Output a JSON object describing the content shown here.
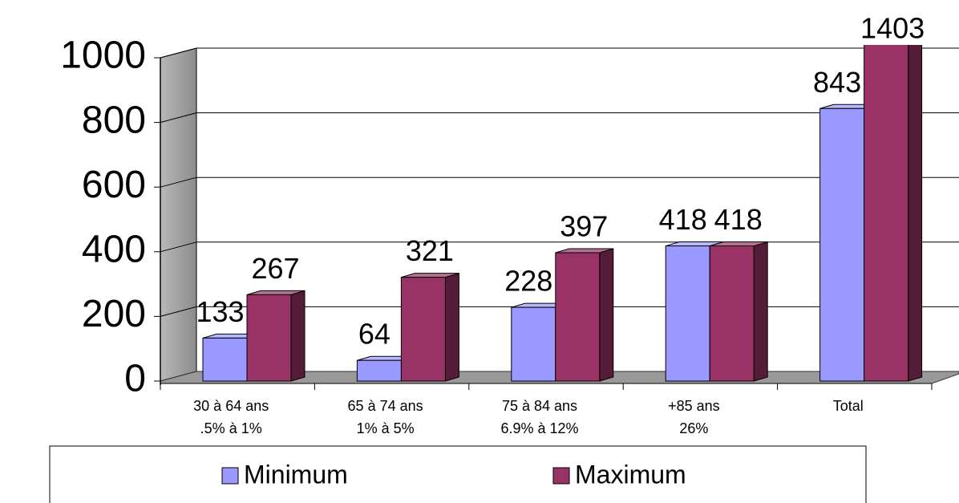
{
  "chart_data": {
    "type": "bar3d",
    "categories": [
      [
        "30 à 64 ans",
        ".5% à 1%"
      ],
      [
        "65 à 74 ans",
        "1% à 5%"
      ],
      [
        "75 à 84 ans",
        "6.9% à 12%"
      ],
      [
        "+85 ans",
        "26%"
      ],
      [
        "Total"
      ]
    ],
    "series": [
      {
        "name": "Minimum",
        "color": "#9999ff",
        "values": [
          133,
          64,
          228,
          418,
          843
        ]
      },
      {
        "name": "Maximum",
        "color": "#993366",
        "values": [
          267,
          321,
          397,
          418,
          1403
        ]
      }
    ],
    "ylim": [
      0,
      1000
    ],
    "yticks": [
      0,
      200,
      400,
      600,
      800,
      1000
    ],
    "grid": true,
    "legend": "bottom"
  }
}
